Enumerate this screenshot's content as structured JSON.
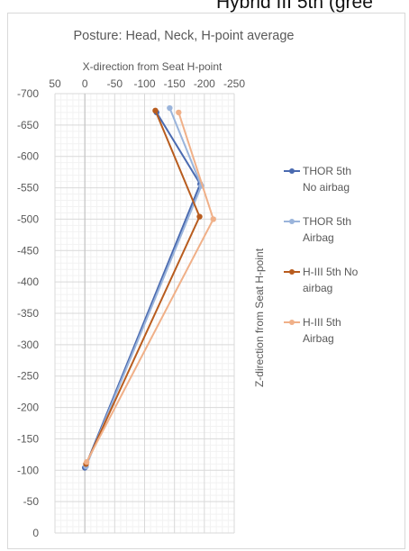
{
  "top_text": "Hybrid III 5th (gree",
  "chart_data": {
    "type": "scatter",
    "title": "Posture: Head, Neck, H-point average",
    "xlabel": "X-direction from Seat H-point",
    "ylabel": "Z-direction from Seat H-point",
    "xlim": [
      50,
      -250
    ],
    "ylim": [
      0,
      -700
    ],
    "x_ticks": [
      "50",
      "0",
      "-50",
      "-100",
      "-150",
      "-200",
      "-250"
    ],
    "y_ticks": [
      "-700",
      "-650",
      "-600",
      "-550",
      "-500",
      "-450",
      "-400",
      "-350",
      "-300",
      "-250",
      "-200",
      "-150",
      "-100",
      "-50",
      "0"
    ],
    "grid": true,
    "legend_position": "right",
    "series": [
      {
        "name": "THOR 5th No airbag",
        "legend_lines": [
          "THOR 5th",
          "No airbag"
        ],
        "color": "#4a6ab0",
        "points": [
          [
            -120,
            -670
          ],
          [
            -193,
            -556
          ],
          [
            0,
            -104
          ]
        ]
      },
      {
        "name": "THOR 5th Airbag",
        "legend_lines": [
          "THOR 5th",
          "Airbag"
        ],
        "color": "#9ab4db",
        "points": [
          [
            -142,
            -677
          ],
          [
            -195,
            -553
          ],
          [
            -2,
            -106
          ]
        ]
      },
      {
        "name": "H-III 5th No airbag",
        "legend_lines": [
          "H-III 5th No",
          "airbag"
        ],
        "color": "#b85c1e",
        "points": [
          [
            -118,
            -673
          ],
          [
            -192,
            -504
          ],
          [
            -2,
            -110
          ]
        ]
      },
      {
        "name": "H-III 5th Airbag",
        "legend_lines": [
          "H-III 5th",
          "Airbag"
        ],
        "color": "#f0b088",
        "points": [
          [
            -157,
            -670
          ],
          [
            -215,
            -500
          ],
          [
            -3,
            -113
          ]
        ]
      }
    ]
  }
}
